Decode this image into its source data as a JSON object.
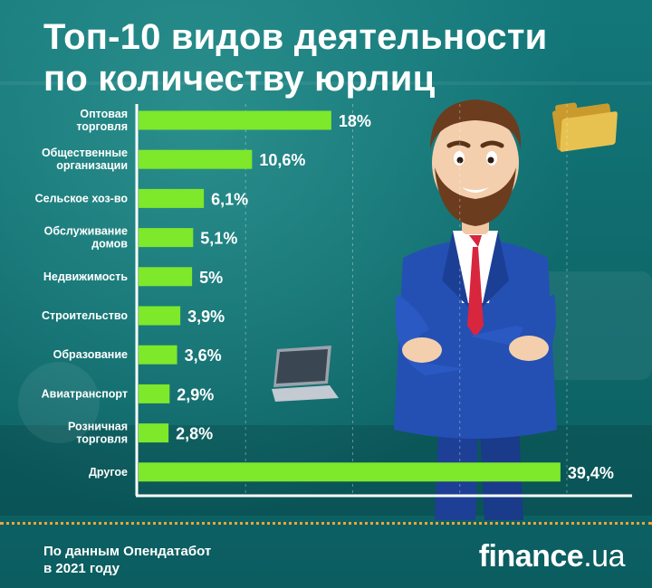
{
  "title": {
    "line1": "Топ-10 видов деятельности",
    "line2": "по количеству юрлиц"
  },
  "footer": {
    "source_line1": "По данным Опендатабот",
    "source_line2": "в 2021 году",
    "logo_main": "finance",
    "logo_suffix": ".ua"
  },
  "colors": {
    "bar": "#7ee82b",
    "label": "#ffffff",
    "axis": "#ffffff",
    "accent_dots": "#f0a23a"
  },
  "illustration": {
    "figure": "businessman-arms-crossed",
    "icons": [
      "folder-icon",
      "laptop-icon"
    ]
  },
  "chart_data": {
    "type": "bar",
    "orientation": "horizontal",
    "title": "Топ-10 видов деятельности по количеству юрлиц",
    "categories": [
      [
        "Оптовая",
        "торговля"
      ],
      [
        "Общественные",
        "организации"
      ],
      [
        "Сельское хоз-во"
      ],
      [
        "Обслуживание",
        "домов"
      ],
      [
        "Недвижимость"
      ],
      [
        "Строительство"
      ],
      [
        "Образование"
      ],
      [
        "Авиатранспорт"
      ],
      [
        "Розничная",
        "торговля"
      ],
      [
        "Другое"
      ]
    ],
    "values": [
      18,
      10.6,
      6.1,
      5.1,
      5,
      3.9,
      3.6,
      2.9,
      2.8,
      39.4
    ],
    "value_labels": [
      "18%",
      "10,6%",
      "6,1%",
      "5,1%",
      "5%",
      "3,9%",
      "3,6%",
      "2,9%",
      "2,8%",
      "39,4%"
    ],
    "unit": "%",
    "xlim": [
      0,
      40
    ],
    "grid": "vertical dashed",
    "legend": "none"
  }
}
